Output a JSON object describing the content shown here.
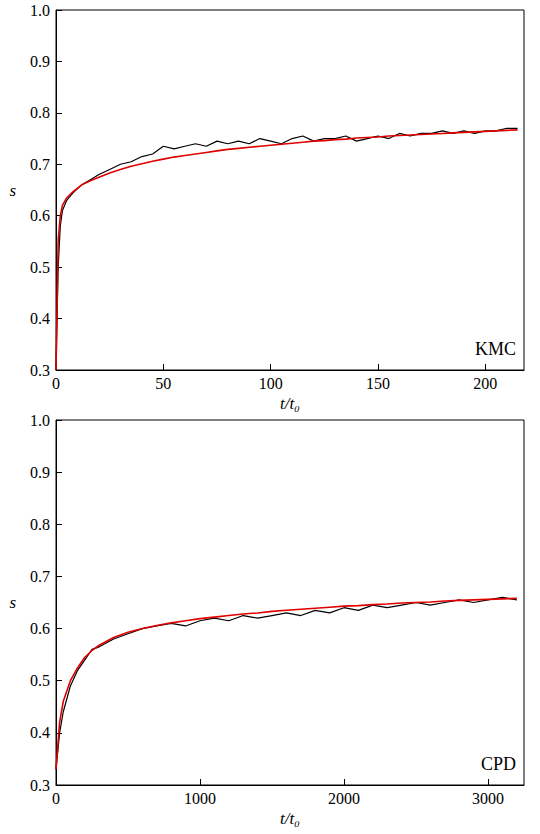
{
  "chart_data": [
    {
      "type": "line",
      "annotation": "KMC",
      "xlabel": "t/t₀",
      "ylabel": "s",
      "xlim": [
        0,
        218
      ],
      "xticks": [
        0,
        50,
        100,
        150,
        200
      ],
      "ylim": [
        0.3,
        1
      ],
      "yticks": [
        0.3,
        0.4,
        0.5,
        0.6,
        0.7,
        0.8,
        0.9,
        {
          "value": 1,
          "label": "1.0"
        }
      ],
      "grid": false,
      "x": [
        0,
        1,
        2,
        3,
        5,
        8,
        12,
        16,
        20,
        25,
        30,
        35,
        40,
        45,
        50,
        55,
        60,
        65,
        70,
        75,
        80,
        85,
        90,
        95,
        100,
        105,
        110,
        115,
        120,
        125,
        130,
        135,
        140,
        145,
        150,
        155,
        160,
        165,
        170,
        175,
        180,
        185,
        190,
        195,
        200,
        205,
        210,
        215
      ],
      "series": [
        {
          "color": "#000000",
          "line_style": "solid",
          "values": [
            0.3,
            0.5,
            0.58,
            0.61,
            0.63,
            0.645,
            0.66,
            0.67,
            0.68,
            0.69,
            0.7,
            0.705,
            0.715,
            0.72,
            0.735,
            0.73,
            0.735,
            0.74,
            0.735,
            0.745,
            0.74,
            0.745,
            0.74,
            0.75,
            0.745,
            0.74,
            0.75,
            0.755,
            0.745,
            0.75,
            0.75,
            0.755,
            0.745,
            0.75,
            0.755,
            0.75,
            0.76,
            0.755,
            0.76,
            0.76,
            0.765,
            0.76,
            0.765,
            0.76,
            0.765,
            0.765,
            0.77,
            0.77
          ]
        },
        {
          "color": "#e00000",
          "line_style": "solid",
          "values": [
            0.3,
            0.55,
            0.6,
            0.62,
            0.635,
            0.647,
            0.66,
            0.668,
            0.675,
            0.683,
            0.69,
            0.696,
            0.701,
            0.706,
            0.71,
            0.714,
            0.717,
            0.72,
            0.723,
            0.726,
            0.729,
            0.731,
            0.733,
            0.735,
            0.737,
            0.739,
            0.741,
            0.743,
            0.745,
            0.746,
            0.748,
            0.749,
            0.751,
            0.752,
            0.753,
            0.755,
            0.756,
            0.757,
            0.758,
            0.759,
            0.76,
            0.761,
            0.762,
            0.763,
            0.764,
            0.765,
            0.766,
            0.767
          ]
        }
      ]
    },
    {
      "type": "line",
      "annotation": "CPD",
      "xlabel": "t/t₀",
      "ylabel": "s",
      "xlim": [
        0,
        3250
      ],
      "xticks": [
        0,
        1000,
        2000,
        3000
      ],
      "ylim": [
        0.3,
        1
      ],
      "yticks": [
        0.3,
        0.4,
        0.5,
        0.6,
        0.7,
        0.8,
        0.9,
        {
          "value": 1,
          "label": "1.0"
        }
      ],
      "grid": false,
      "x": [
        0,
        25,
        50,
        100,
        150,
        200,
        250,
        300,
        400,
        500,
        600,
        700,
        800,
        900,
        1000,
        1100,
        1200,
        1300,
        1400,
        1500,
        1600,
        1700,
        1800,
        1900,
        2000,
        2100,
        2200,
        2300,
        2400,
        2500,
        2600,
        2700,
        2800,
        2900,
        3000,
        3100,
        3200
      ],
      "series": [
        {
          "color": "#000000",
          "line_style": "solid",
          "values": [
            0.33,
            0.4,
            0.44,
            0.49,
            0.52,
            0.54,
            0.56,
            0.565,
            0.58,
            0.59,
            0.6,
            0.605,
            0.61,
            0.605,
            0.615,
            0.62,
            0.615,
            0.625,
            0.62,
            0.625,
            0.63,
            0.625,
            0.635,
            0.63,
            0.64,
            0.635,
            0.645,
            0.64,
            0.645,
            0.65,
            0.645,
            0.65,
            0.655,
            0.65,
            0.655,
            0.66,
            0.655
          ]
        },
        {
          "color": "#e00000",
          "line_style": "solid",
          "values": [
            0.33,
            0.42,
            0.46,
            0.5,
            0.525,
            0.545,
            0.558,
            0.568,
            0.583,
            0.593,
            0.6,
            0.606,
            0.611,
            0.615,
            0.619,
            0.622,
            0.625,
            0.628,
            0.63,
            0.633,
            0.635,
            0.637,
            0.639,
            0.641,
            0.643,
            0.644,
            0.646,
            0.647,
            0.649,
            0.65,
            0.651,
            0.653,
            0.654,
            0.655,
            0.656,
            0.657,
            0.658
          ]
        }
      ]
    }
  ]
}
